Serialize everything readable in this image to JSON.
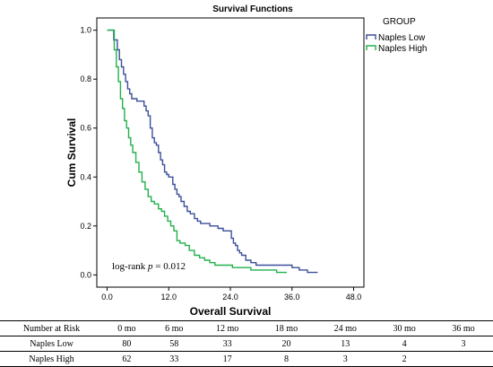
{
  "chart_data": {
    "type": "line",
    "step": true,
    "title": "Survival Functions",
    "xlabel": "Overall Survival",
    "ylabel": "Cum Survival",
    "xlim": [
      -2,
      50
    ],
    "ylim": [
      -0.05,
      1.05
    ],
    "xticks": [
      0,
      12,
      24,
      36,
      48
    ],
    "xtick_labels": [
      "0.0",
      "12.0",
      "24.0",
      "36.0",
      "48.0"
    ],
    "yticks": [
      0,
      0.2,
      0.4,
      0.6,
      0.8,
      1.0
    ],
    "ytick_labels": [
      "0.0",
      "0.2",
      "0.4",
      "0.6",
      "0.8",
      "1.0"
    ],
    "grid": false,
    "legend": {
      "title": "GROUP",
      "placement": "top-right, outside plot"
    },
    "annotation": {
      "prefix": "log-rank ",
      "italic": "p",
      "suffix": " = 0.012"
    },
    "series": [
      {
        "name": "Naples Low",
        "color": "#3b4f9a",
        "x": [
          0,
          1.3,
          2.0,
          2.4,
          2.8,
          3.2,
          3.6,
          4.0,
          4.4,
          4.8,
          5.2,
          5.8,
          7.2,
          7.6,
          8.0,
          8.4,
          8.8,
          9.2,
          9.6,
          10.0,
          10.4,
          10.8,
          11.2,
          11.6,
          12.0,
          12.8,
          13.2,
          13.6,
          14.0,
          14.4,
          15.0,
          15.6,
          16.2,
          17.0,
          17.6,
          18.2,
          19.0,
          20.0,
          20.8,
          21.6,
          22.6,
          24.2,
          24.6,
          25.0,
          25.4,
          25.8,
          26.2,
          27.0,
          28.0,
          29.0,
          33.0,
          36.0,
          37.4,
          39.0,
          41.0
        ],
        "y": [
          1.0,
          0.96,
          0.92,
          0.88,
          0.85,
          0.82,
          0.79,
          0.76,
          0.74,
          0.72,
          0.72,
          0.71,
          0.69,
          0.67,
          0.65,
          0.6,
          0.56,
          0.54,
          0.53,
          0.5,
          0.47,
          0.45,
          0.42,
          0.41,
          0.4,
          0.37,
          0.35,
          0.33,
          0.32,
          0.3,
          0.28,
          0.26,
          0.25,
          0.23,
          0.22,
          0.21,
          0.21,
          0.2,
          0.2,
          0.19,
          0.18,
          0.15,
          0.13,
          0.12,
          0.1,
          0.09,
          0.08,
          0.06,
          0.05,
          0.04,
          0.04,
          0.03,
          0.02,
          0.01,
          0.01
        ]
      },
      {
        "name": "Naples High",
        "color": "#22b14c",
        "x": [
          0,
          1.4,
          1.8,
          2.2,
          2.6,
          3.0,
          3.4,
          3.8,
          4.2,
          4.6,
          5.0,
          5.6,
          6.2,
          6.8,
          7.4,
          8.0,
          8.6,
          9.2,
          10.0,
          10.6,
          11.2,
          11.8,
          12.4,
          13.0,
          13.6,
          14.2,
          15.2,
          16.0,
          17.0,
          18.0,
          19.0,
          20.0,
          21.0,
          24.4,
          26.0,
          28.0,
          30.0,
          33.0,
          35.0
        ],
        "y": [
          1.0,
          0.92,
          0.85,
          0.79,
          0.72,
          0.68,
          0.63,
          0.6,
          0.56,
          0.53,
          0.5,
          0.46,
          0.42,
          0.38,
          0.35,
          0.32,
          0.3,
          0.29,
          0.27,
          0.26,
          0.24,
          0.22,
          0.2,
          0.18,
          0.14,
          0.13,
          0.12,
          0.1,
          0.08,
          0.07,
          0.06,
          0.05,
          0.04,
          0.03,
          0.03,
          0.02,
          0.02,
          0.01,
          0.01
        ]
      }
    ]
  },
  "risk_table": {
    "header": "Number at Risk",
    "columns": [
      "0 mo",
      "6 mo",
      "12 mo",
      "18 mo",
      "24 mo",
      "30 mo",
      "36 mo"
    ],
    "rows": [
      {
        "label": "Naples Low",
        "values": [
          "80",
          "58",
          "33",
          "20",
          "13",
          "4",
          "3"
        ]
      },
      {
        "label": "Naples High",
        "values": [
          "62",
          "33",
          "17",
          "8",
          "3",
          "2",
          ""
        ]
      }
    ]
  }
}
